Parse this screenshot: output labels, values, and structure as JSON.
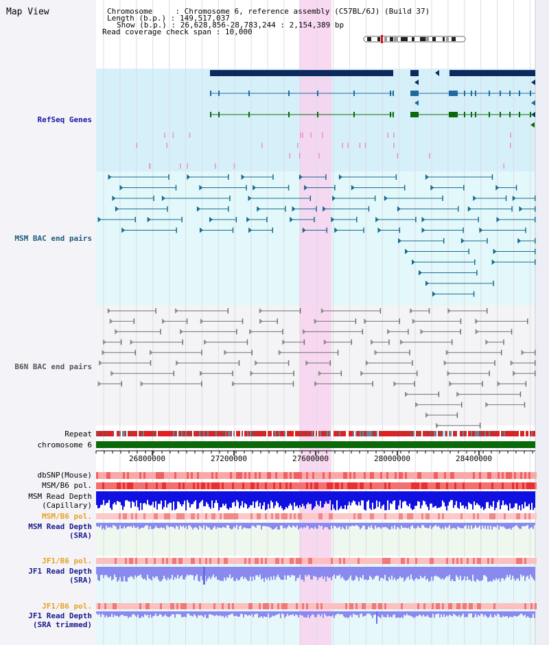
{
  "title": "Map View",
  "info": {
    "chromosome_key": "Chromosome",
    "chromosome_value": "Chromosome 6, reference assembly (C57BL/6J) (Build 37)",
    "length_key": "Length (b.p.)",
    "length_value": "149,517,037",
    "show_key": "Show (b.p.)",
    "show_value": "26,628,856-28,783,244 : 2,154,389 bp",
    "coverage_key": "Read coverage check span",
    "coverage_value": "10,000"
  },
  "tracks": {
    "refseq": "RefSeq Genes",
    "msm_bac": "MSM BAC end pairs",
    "b6n_bac": "B6N BAC end pairs",
    "repeat": "Repeat",
    "chromosome": "chromosome 6",
    "dbsnp": "dbSNP(Mouse)",
    "msm_b6_pol_1": "MSM/B6 pol.",
    "msm_read_depth_cap_1": "MSM Read Depth",
    "msm_read_depth_cap_2": "(Capillary)",
    "msm_b6_pol_2": "MSM/B6 pol.",
    "msm_read_depth_sra_1": "MSM Read Depth",
    "msm_read_depth_sra_2": "(SRA)",
    "jf1_b6_pol_1": "JF1/B6 pol.",
    "jf1_read_depth_sra_1": "JF1 Read Depth",
    "jf1_read_depth_sra_2": "(SRA)",
    "jf1_b6_pol_2": "JF1/B6 pol.",
    "jf1_read_depth_trim_1": "JF1 Read Depth",
    "jf1_read_depth_trim_2": "(SRA trimmed)"
  },
  "axis": {
    "ticks": [
      "26800000",
      "27200000",
      "27600000",
      "28000000",
      "28400000"
    ]
  },
  "colors": {
    "refseq_bg": "#d6f0fa",
    "msm_bg": "#e2f8fa",
    "b6n_bg": "#f4f4f6",
    "highlight": "#f8d2ee",
    "chromosome_bar": "#0a6a0a",
    "gene_dark": "#0c2a5e",
    "gene_blue": "#1e6aa0",
    "gene_green": "#0a6a0a",
    "msm_pair": "#1a6a8c",
    "b6n_pair": "#707070",
    "snp": "#f07070",
    "depth_blue": "#1010e0",
    "depth_light": "#8a8aee"
  }
}
